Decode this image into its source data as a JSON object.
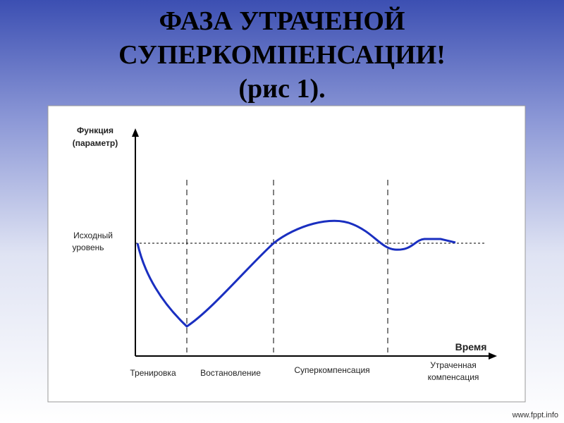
{
  "title": {
    "lines": [
      "ФАЗА УТРАЧЕНОЙ",
      "СУПЕРКОМПЕНСАЦИИ!",
      "(рис 1)."
    ]
  },
  "diagram": {
    "y_axis_label": [
      "Функция",
      "(параметр)"
    ],
    "baseline_label": [
      "Исходный",
      "уровень"
    ],
    "x_axis_label": "Время",
    "phases": [
      [
        "Тренировка"
      ],
      [
        "Востановление"
      ],
      [
        "Суперкомпенсация"
      ],
      [
        "Утраченная",
        "компенсация"
      ]
    ]
  },
  "footer": "www.fppt.info"
}
